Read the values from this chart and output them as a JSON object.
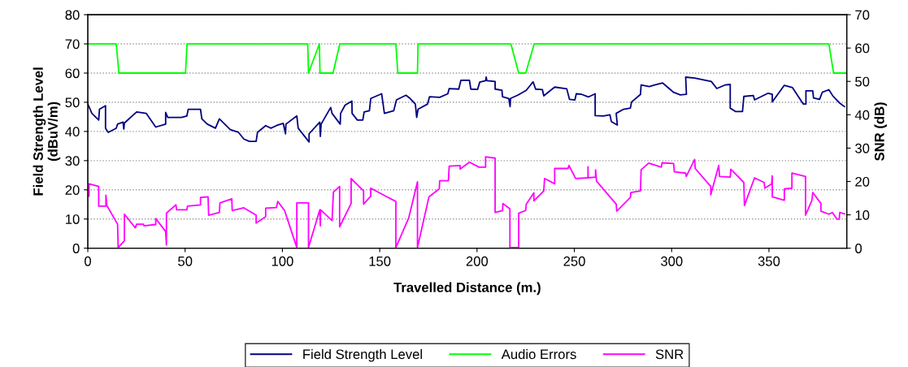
{
  "chart_data": {
    "type": "line",
    "xlabel": "Travelled Distance (m.)",
    "ylabel": "Field Strength Level\n(dBuV/m)",
    "y2label": "SNR (dB)",
    "xlim": [
      0,
      390
    ],
    "xticks": [
      0,
      50,
      100,
      150,
      200,
      250,
      300,
      350
    ],
    "ylim": [
      0,
      80
    ],
    "yticks": [
      0,
      10,
      20,
      30,
      40,
      50,
      60,
      70,
      80
    ],
    "y2lim": [
      0,
      70
    ],
    "y2ticks": [
      0,
      10,
      20,
      30,
      40,
      50,
      60,
      70
    ],
    "grid": "y",
    "legend": "bottom",
    "marker": "none",
    "line_style": "solid",
    "series": [
      {
        "name": "Field Strength Level",
        "color": "#000080",
        "x": [
          0,
          2.1,
          5.6,
          6,
          9.1,
          9.1,
          10.5,
          14.6,
          15.3,
          18.1,
          18.5,
          18.8,
          25.1,
          30,
          34.9,
          40,
          40,
          41.1,
          48.1,
          50.9,
          51.6,
          57.9,
          58.6,
          61.4,
          65.6,
          67.6,
          73.2,
          77.4,
          80.2,
          83,
          86.5,
          87.2,
          91.4,
          94.1,
          96.9,
          100.4,
          101.6,
          101.8,
          107.4,
          108.1,
          113.7,
          113.7,
          119.2,
          119.5,
          119.9,
          124.8,
          125.5,
          129.7,
          129.9,
          132.2,
          135.7,
          135.8,
          138.5,
          141.3,
          142,
          144.7,
          145.4,
          151,
          152.4,
          157.2,
          158.6,
          163.5,
          165.6,
          168.3,
          169,
          169.7,
          174.6,
          175.6,
          180.8,
          185,
          185.7,
          190.6,
          191.7,
          196.1,
          196.8,
          200.3,
          201.4,
          204.4,
          204.7,
          205.1,
          209.3,
          209.3,
          212.8,
          213.1,
          216.3,
          217,
          217.2,
          221.1,
          225.3,
          228.8,
          230.1,
          233.6,
          234.3,
          239.9,
          246.1,
          247.5,
          250.3,
          251,
          253.8,
          257.2,
          260.7,
          260.7,
          264.9,
          268.3,
          269,
          272.1,
          271.5,
          275.3,
          278.8,
          279.4,
          284,
          284.3,
          288.5,
          291.3,
          295.4,
          301,
          304.4,
          307.6,
          307.2,
          311.8,
          320.4,
          323.2,
          327.4,
          330.1,
          330.1,
          332.9,
          336.4,
          337.1,
          342,
          342.6,
          349.6,
          351.7,
          351.7,
          357.9,
          362.1,
          367.6,
          369,
          369,
          372.5,
          372.9,
          376,
          377.4,
          380.8,
          382.9,
          386.4,
          388.8
        ],
        "values": [
          49.4,
          46.2,
          43.9,
          47.6,
          48.8,
          41.1,
          39.7,
          41.1,
          42.5,
          43.2,
          40.8,
          42.9,
          46.7,
          46.2,
          41.5,
          42.5,
          46.5,
          44.8,
          44.8,
          45.3,
          47.6,
          47.6,
          44.3,
          42.5,
          41.1,
          44.3,
          40.6,
          39.7,
          37.4,
          36.6,
          36.6,
          39.7,
          42,
          41.1,
          42,
          42.8,
          39.2,
          42.5,
          45.3,
          41.1,
          36.4,
          39.2,
          43.2,
          38.3,
          42.5,
          48.2,
          46.2,
          42.5,
          46.2,
          49,
          50.4,
          46.2,
          43.9,
          43.9,
          46.7,
          47.1,
          51.3,
          52.9,
          46.2,
          47.1,
          50.8,
          52.4,
          51.3,
          49.4,
          44.8,
          47.6,
          49.4,
          51.9,
          51.7,
          52.9,
          54.7,
          54.5,
          57.5,
          57.5,
          54.5,
          54.4,
          56.9,
          57.4,
          58.6,
          57.4,
          57.1,
          54.5,
          54.1,
          51.9,
          51.3,
          48.5,
          51.3,
          52.5,
          54.1,
          57,
          54.5,
          54.3,
          52.2,
          55.2,
          54.6,
          51,
          50.8,
          52.9,
          52.7,
          51.8,
          52.9,
          45.4,
          45.3,
          45.7,
          43.4,
          42.2,
          46.2,
          47.6,
          48,
          50.1,
          52.7,
          55.9,
          55.4,
          55.9,
          56.6,
          53.4,
          52.5,
          52.7,
          58.6,
          58.3,
          57.1,
          54.7,
          55.9,
          56.1,
          48,
          46.8,
          46.8,
          52,
          52.3,
          50.8,
          53.1,
          52.7,
          50.1,
          55.8,
          55,
          49.4,
          49.4,
          53.9,
          53.9,
          51.5,
          51,
          53.4,
          54.3,
          52.1,
          49.7,
          48.5
        ]
      },
      {
        "name": "Audio Errors",
        "color": "#00ff00",
        "x": [
          0,
          13,
          14.6,
          16,
          50.2,
          51,
          113,
          113.4,
          119,
          119.3,
          126,
          129.5,
          158.3,
          159.3,
          169.4,
          169.7,
          217.4,
          221.4,
          225,
          229.4,
          380.8,
          383.2,
          390
        ],
        "values": [
          70,
          70,
          70,
          60,
          60,
          70,
          70,
          60,
          70,
          60,
          60,
          70,
          70,
          60,
          60,
          70,
          70,
          60,
          60,
          70,
          70,
          60,
          60
        ]
      },
      {
        "name": "SNR",
        "color": "#ff00ff",
        "axis": "y2",
        "x": [
          0.6,
          0.6,
          5.6,
          5.6,
          9.3,
          9.3,
          9.8,
          15.3,
          15.6,
          18.8,
          18.8,
          24.4,
          25.1,
          28.6,
          28.9,
          34.9,
          34.9,
          40,
          40.4,
          40.4,
          45.3,
          45.6,
          50.9,
          51.2,
          57.9,
          57.9,
          61.8,
          62.1,
          67.6,
          67.9,
          74,
          74.2,
          80.2,
          86.5,
          86.5,
          91.4,
          91.4,
          96.9,
          97.6,
          101.1,
          107.4,
          107.4,
          113.4,
          113.4,
          119.2,
          119.5,
          119.6,
          125.5,
          126.2,
          129.4,
          129.4,
          135.3,
          135.3,
          141.7,
          141.7,
          145.4,
          145.4,
          152.4,
          158.3,
          158.3,
          164.9,
          169.4,
          169.4,
          175.3,
          180.6,
          180.8,
          185.3,
          185.7,
          191.3,
          191.3,
          196.1,
          201,
          204.4,
          204.4,
          209.3,
          209.3,
          213.1,
          213.3,
          216.9,
          216.9,
          221.4,
          221.4,
          225,
          225.3,
          229.2,
          229.2,
          234.3,
          234.7,
          239.9,
          239.9,
          246.8,
          247.2,
          250.7,
          257,
          257,
          257.1,
          260.9,
          260.9,
          261.4,
          271.5,
          271.8,
          278.8,
          279,
          284,
          284.3,
          288.2,
          294.7,
          295.1,
          301,
          301.4,
          307.2,
          307.5,
          311.8,
          312.1,
          320.1,
          320.1,
          324.2,
          324.6,
          330.1,
          330.4,
          337.1,
          337.4,
          342.6,
          347.5,
          347.9,
          351.4,
          351.7,
          351.7,
          357.9,
          357.9,
          361.8,
          361.8,
          368.8,
          368.8,
          372.1,
          372.5,
          376.7,
          376.7,
          380.8,
          382.6,
          385,
          386.1,
          386.4,
          388.8
        ],
        "values": [
          15.6,
          19.3,
          18.5,
          12.6,
          12.6,
          15.9,
          12.8,
          7.2,
          0.2,
          2.2,
          10.2,
          6.1,
          7.2,
          7.2,
          6.7,
          7.1,
          8.9,
          5,
          1,
          10.5,
          13,
          11.5,
          11.5,
          12.6,
          13,
          15.2,
          15.4,
          9.9,
          10.7,
          13.6,
          14.8,
          11.3,
          12.1,
          9.9,
          7.5,
          9.5,
          12,
          12.2,
          14,
          11.3,
          0.2,
          13.6,
          13.6,
          0.2,
          11.5,
          6.7,
          11.5,
          8.3,
          16.8,
          18.5,
          6.4,
          13.4,
          20.9,
          17.2,
          13.2,
          15.6,
          18,
          15.8,
          14,
          0.2,
          9.1,
          19.9,
          0.2,
          15.4,
          17.8,
          20.2,
          20.2,
          24.6,
          24.8,
          23.7,
          25.8,
          24.3,
          24.3,
          27.4,
          27,
          10.7,
          11.3,
          13.4,
          11.8,
          0.2,
          0.2,
          10.5,
          11.3,
          13.2,
          16.6,
          14.2,
          17.2,
          20.9,
          19.3,
          23.9,
          23.9,
          24.8,
          20.9,
          21.1,
          24.4,
          21.1,
          21.3,
          23.5,
          20.1,
          13.2,
          11.1,
          15.2,
          16.7,
          17.2,
          23.5,
          25.5,
          24.3,
          25.6,
          25.4,
          22.9,
          22.5,
          21.5,
          26.6,
          23.9,
          18.5,
          16,
          24.8,
          21.5,
          21.3,
          23.7,
          19.7,
          12.8,
          21.1,
          19.7,
          18,
          19.3,
          21.7,
          15.4,
          14.4,
          17.8,
          18,
          22.5,
          21.5,
          9.9,
          14.4,
          16.7,
          13.4,
          11.1,
          10.2,
          10.7,
          8.7,
          8.7,
          10.7,
          10.3
        ]
      }
    ]
  }
}
